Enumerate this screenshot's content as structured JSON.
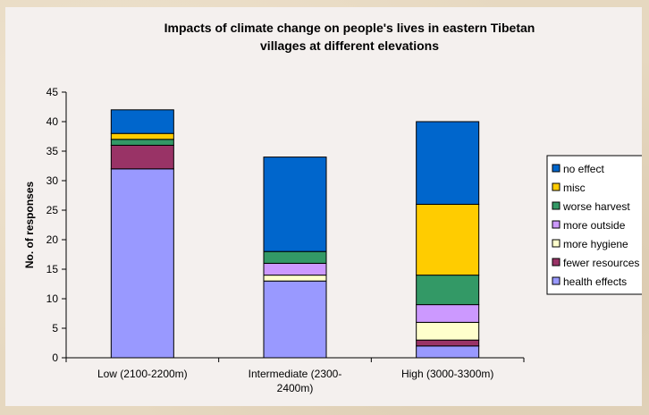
{
  "chart_data": {
    "type": "bar",
    "stacked": true,
    "title": "Impacts of climate change on people's lives in eastern Tibetan villages at different elevations",
    "title_lines": [
      "Impacts of climate change on people's lives in eastern Tibetan",
      "villages at different elevations"
    ],
    "ylabel": "No. of responses",
    "xlabel": "",
    "ylim": [
      0,
      45
    ],
    "yticks": [
      0,
      5,
      10,
      15,
      20,
      25,
      30,
      35,
      40,
      45
    ],
    "categories": [
      "Low (2100-2200m)",
      "Intermediate (2300-2400m)",
      "High (3000-3300m)"
    ],
    "category_lines": [
      [
        "Low (2100-2200m)"
      ],
      [
        "Intermediate (2300-",
        "2400m)"
      ],
      [
        "High (3000-3300m)"
      ]
    ],
    "series": [
      {
        "name": "health effects",
        "color": "#9999ff",
        "values": [
          32,
          13,
          2
        ]
      },
      {
        "name": "fewer resources",
        "color": "#993366",
        "values": [
          4,
          0,
          1
        ]
      },
      {
        "name": "more hygiene",
        "color": "#ffffcc",
        "values": [
          0,
          1,
          3
        ]
      },
      {
        "name": "more outside",
        "color": "#cc99ff",
        "values": [
          0,
          2,
          3
        ]
      },
      {
        "name": "worse harvest",
        "color": "#339966",
        "values": [
          1,
          2,
          5
        ]
      },
      {
        "name": "misc",
        "color": "#ffcc00",
        "values": [
          1,
          0,
          12
        ]
      },
      {
        "name": "no effect",
        "color": "#0066cc",
        "values": [
          4,
          16,
          14
        ]
      }
    ],
    "legend_position": "right",
    "grid": false
  }
}
